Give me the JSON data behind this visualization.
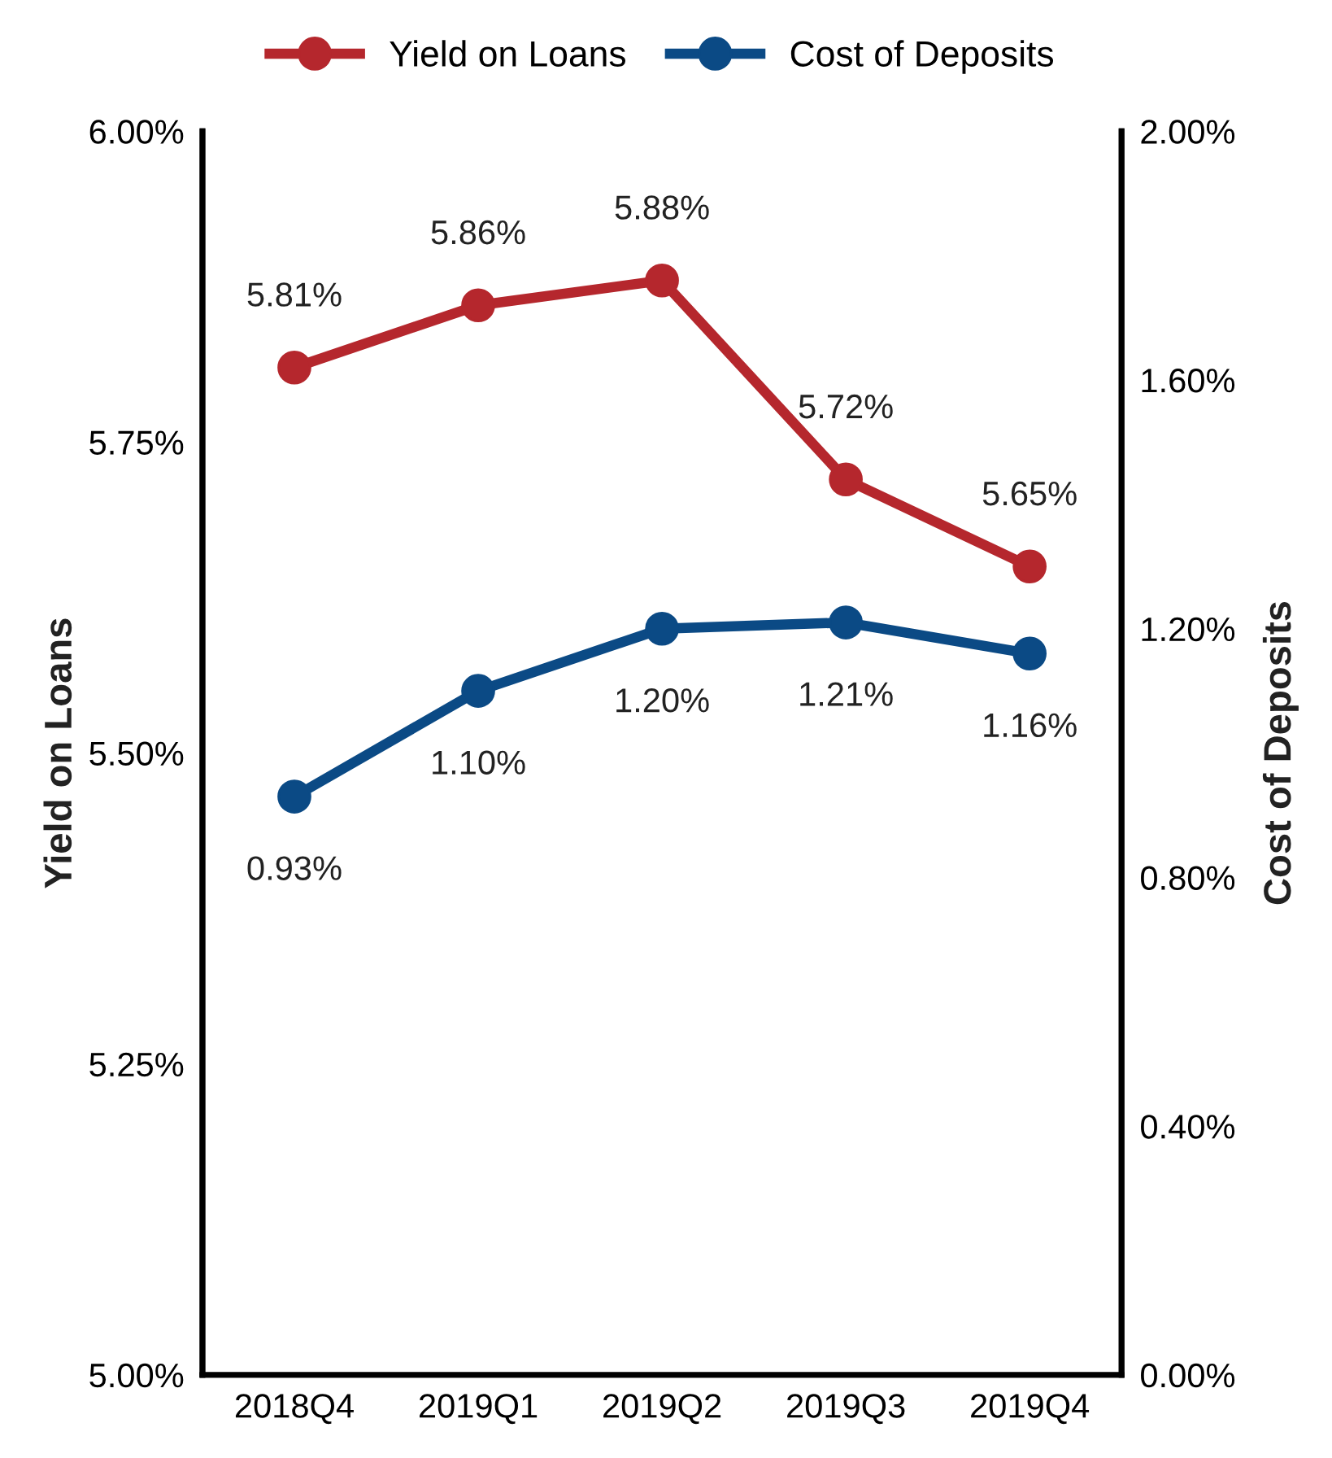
{
  "chart_data": {
    "type": "line",
    "categories": [
      "2018Q4",
      "2019Q1",
      "2019Q2",
      "2019Q3",
      "2019Q4"
    ],
    "ylabel": "Yield on Loans",
    "y2label": "Cost of Deposits",
    "ylim": [
      5.0,
      6.0
    ],
    "yticks": [
      {
        "value": 5.0,
        "label": "5.00%"
      },
      {
        "value": 5.25,
        "label": "5.25%"
      },
      {
        "value": 5.5,
        "label": "5.50%"
      },
      {
        "value": 5.75,
        "label": "5.75%"
      },
      {
        "value": 6.0,
        "label": "6.00%"
      }
    ],
    "y2lim": [
      0.0,
      2.0
    ],
    "y2ticks": [
      {
        "value": 0.0,
        "label": "0.00%"
      },
      {
        "value": 0.4,
        "label": "0.40%"
      },
      {
        "value": 0.8,
        "label": "0.80%"
      },
      {
        "value": 1.2,
        "label": "1.20%"
      },
      {
        "value": 1.6,
        "label": "1.60%"
      },
      {
        "value": 2.0,
        "label": "2.00%"
      }
    ],
    "series": [
      {
        "name": "Yield on Loans",
        "color": "#b5272d",
        "values": [
          5.81,
          5.86,
          5.88,
          5.72,
          5.65
        ],
        "value_labels": [
          "5.81%",
          "5.86%",
          "5.88%",
          "5.72%",
          "5.65%"
        ]
      },
      {
        "name": "Cost of Deposits",
        "color": "#0b4a85",
        "axis": "y2",
        "values": [
          0.93,
          1.1,
          1.2,
          1.21,
          1.16
        ],
        "value_labels": [
          "0.93%",
          "1.10%",
          "1.20%",
          "1.21%",
          "1.16%"
        ]
      }
    ],
    "marker": "circle",
    "line_style": "solid",
    "grid": false,
    "legend": "top"
  }
}
